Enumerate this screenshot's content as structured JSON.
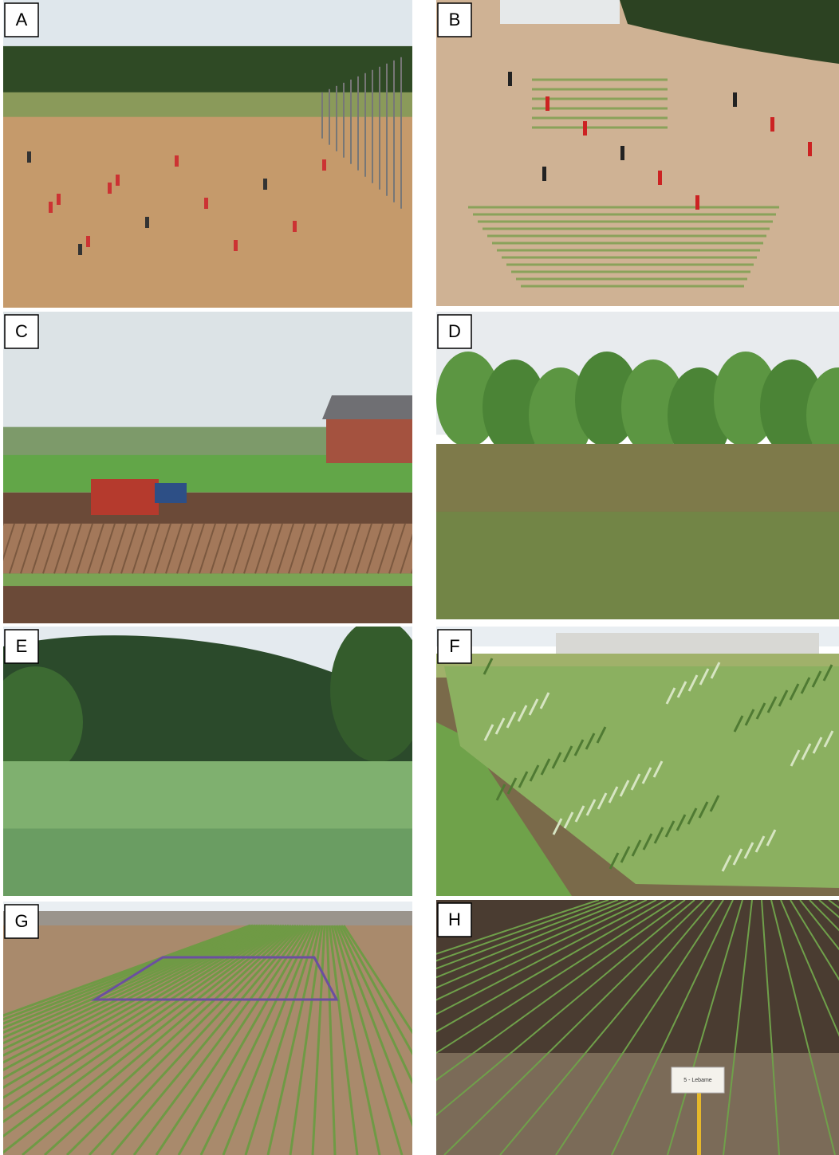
{
  "panels": [
    {
      "label": "A"
    },
    {
      "label": "B"
    },
    {
      "label": "C"
    },
    {
      "label": "D"
    },
    {
      "label": "E"
    },
    {
      "label": "F"
    },
    {
      "label": "G"
    },
    {
      "label": "H",
      "sign": "5 - Lebame"
    }
  ]
}
